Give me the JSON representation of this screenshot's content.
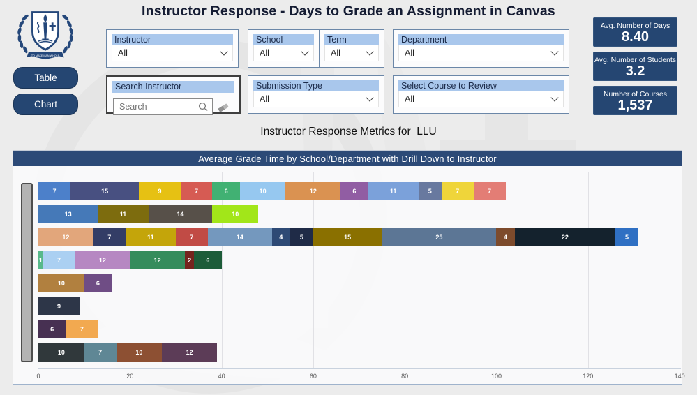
{
  "header": {
    "title": "Instructor Response - Days to Grade an Assignment in Canvas",
    "subtitle": "Instructor Response Metrics for  LLU"
  },
  "logo": {
    "motto": "TO MAKE MAN WHOLE"
  },
  "nav": {
    "table_label": "Table",
    "chart_label": "Chart"
  },
  "filters": {
    "instructor": {
      "label": "Instructor",
      "value": "All"
    },
    "school": {
      "label": "School",
      "value": "All"
    },
    "term": {
      "label": "Term",
      "value": "All"
    },
    "department": {
      "label": "Department",
      "value": "All"
    },
    "search_instructor": {
      "label": "Search Instructor",
      "placeholder": "Search"
    },
    "submission_type": {
      "label": "Submission Type",
      "value": "All"
    },
    "select_course": {
      "label": "Select Course to Review",
      "value": "All"
    }
  },
  "kpis": [
    {
      "label": "Avg. Number of Days",
      "value": "8.40"
    },
    {
      "label": "Avg. Number of Students",
      "value": "3.2"
    },
    {
      "label": "Number of Courses",
      "value": "1,537"
    }
  ],
  "colors": {
    "navy": "#254672",
    "header_bar": "#2c4a77",
    "filter_label_bg": "#a9c7ec",
    "page_bg": "#ececec"
  },
  "chart_data": {
    "type": "bar",
    "stacked": true,
    "orientation": "horizontal",
    "title": "Average Grade Time by School/Department with Drill Down to Instructor",
    "xlabel": "",
    "ylabel": "",
    "x_axis": {
      "min": 0,
      "max": 140,
      "ticks": [
        0,
        20,
        40,
        60,
        80,
        100,
        120,
        140
      ]
    },
    "grid": true,
    "rows": [
      {
        "segments": [
          {
            "value": 7,
            "color": "#4c80ca"
          },
          {
            "value": 15,
            "color": "#485081"
          },
          {
            "value": 9,
            "color": "#e6c113"
          },
          {
            "value": 7,
            "color": "#d65b53"
          },
          {
            "value": 6,
            "color": "#41b173"
          },
          {
            "value": 10,
            "color": "#96c8f0"
          },
          {
            "value": 12,
            "color": "#da9251"
          },
          {
            "value": 6,
            "color": "#915da3"
          },
          {
            "value": 11,
            "color": "#7ba1da"
          },
          {
            "value": 5,
            "color": "#68799f"
          },
          {
            "value": 7,
            "color": "#efd53a"
          },
          {
            "value": 7,
            "color": "#e37d75"
          }
        ]
      },
      {
        "segments": [
          {
            "value": 13,
            "color": "#4579b8"
          },
          {
            "value": 11,
            "color": "#7d6c0e"
          },
          {
            "value": 14,
            "color": "#575049"
          },
          {
            "value": 10,
            "color": "#a2e619"
          }
        ]
      },
      {
        "segments": [
          {
            "value": 12,
            "color": "#e2a67b"
          },
          {
            "value": 7,
            "color": "#333d66"
          },
          {
            "value": 11,
            "color": "#c4a50a"
          },
          {
            "value": 7,
            "color": "#c14b45"
          },
          {
            "value": 14,
            "color": "#7498be"
          },
          {
            "value": 4,
            "color": "#2e4a75"
          },
          {
            "value": 5,
            "color": "#1f2b47"
          },
          {
            "value": 15,
            "color": "#8a7000"
          },
          {
            "value": 25,
            "color": "#5c7695"
          },
          {
            "value": 4,
            "color": "#7d4b2c"
          },
          {
            "value": 22,
            "color": "#14222d"
          },
          {
            "value": 5,
            "color": "#2f70c3"
          }
        ]
      },
      {
        "segments": [
          {
            "value": 1,
            "color": "#57b98b"
          },
          {
            "value": 7,
            "color": "#abd0f2"
          },
          {
            "value": 12,
            "color": "#b687c2"
          },
          {
            "value": 12,
            "color": "#358c5c"
          },
          {
            "value": 2,
            "color": "#75241e"
          },
          {
            "value": 6,
            "color": "#1d5c39"
          }
        ]
      },
      {
        "segments": [
          {
            "value": 10,
            "color": "#b1803f"
          },
          {
            "value": 6,
            "color": "#6f4d85"
          }
        ]
      },
      {
        "segments": [
          {
            "value": 9,
            "color": "#2d3648"
          }
        ]
      },
      {
        "segments": [
          {
            "value": 6,
            "color": "#473052"
          },
          {
            "value": 7,
            "color": "#f2a950"
          }
        ]
      },
      {
        "segments": [
          {
            "value": 10,
            "color": "#30383b"
          },
          {
            "value": 7,
            "color": "#5f8795"
          },
          {
            "value": 10,
            "color": "#8d5033"
          },
          {
            "value": 12,
            "color": "#5c3c57"
          }
        ]
      }
    ]
  }
}
